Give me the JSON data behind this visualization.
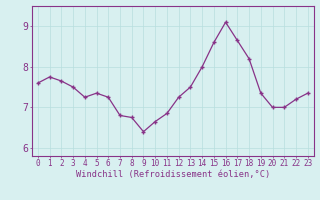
{
  "x": [
    0,
    1,
    2,
    3,
    4,
    5,
    6,
    7,
    8,
    9,
    10,
    11,
    12,
    13,
    14,
    15,
    16,
    17,
    18,
    19,
    20,
    21,
    22,
    23
  ],
  "y": [
    7.6,
    7.75,
    7.65,
    7.5,
    7.25,
    7.35,
    7.25,
    6.8,
    6.75,
    6.4,
    6.65,
    6.85,
    7.25,
    7.5,
    8.0,
    8.6,
    9.1,
    8.65,
    8.2,
    7.35,
    7.0,
    7.0,
    7.2,
    7.35
  ],
  "line_color": "#883388",
  "marker": "+",
  "markersize": 3.5,
  "linewidth": 0.9,
  "xlabel": "Windchill (Refroidissement éolien,°C)",
  "ylim": [
    5.8,
    9.5
  ],
  "yticks": [
    6,
    7,
    8,
    9
  ],
  "xlim": [
    -0.5,
    23.5
  ],
  "xticks": [
    0,
    1,
    2,
    3,
    4,
    5,
    6,
    7,
    8,
    9,
    10,
    11,
    12,
    13,
    14,
    15,
    16,
    17,
    18,
    19,
    20,
    21,
    22,
    23
  ],
  "background_color": "#d8f0f0",
  "grid_color": "#b8dede",
  "tick_color": "#883388",
  "label_color": "#883388",
  "spine_color": "#883388",
  "xtick_fontsize": 5.5,
  "ytick_fontsize": 7,
  "xlabel_fontsize": 6.2
}
